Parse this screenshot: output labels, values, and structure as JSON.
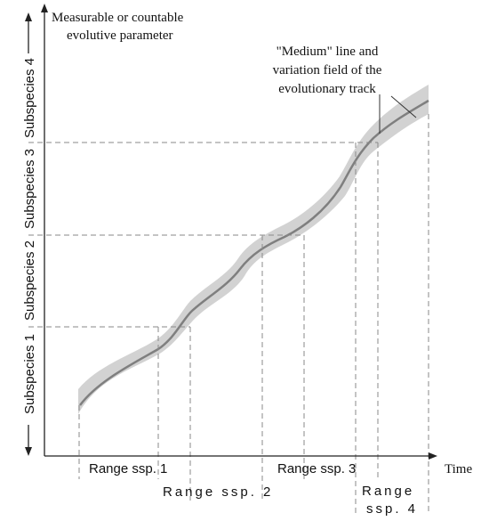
{
  "y_axis_title": [
    "Measurable or countable",
    "evolutive parameter"
  ],
  "x_axis_label": "Time",
  "annotation": [
    "\"Medium\" line and",
    "variation field of the",
    "evolutionary track"
  ],
  "subspecies": [
    "Subspecies 1",
    "Subspecies 2",
    "Subspecies 3",
    "Subspecies 4"
  ],
  "ranges": [
    "Range ssp. 1",
    "Range ssp. 2",
    "Range ssp. 3",
    "Range",
    "ssp. 4"
  ],
  "colors": {
    "track_median": "#7f7f7f",
    "variation_field": "#d2d2d2",
    "guides": "#8a8a8a",
    "axis": "#222222"
  },
  "icons": {
    "vertical_arrows": "double-headed-arrow",
    "axis_arrows": "arrowhead"
  }
}
